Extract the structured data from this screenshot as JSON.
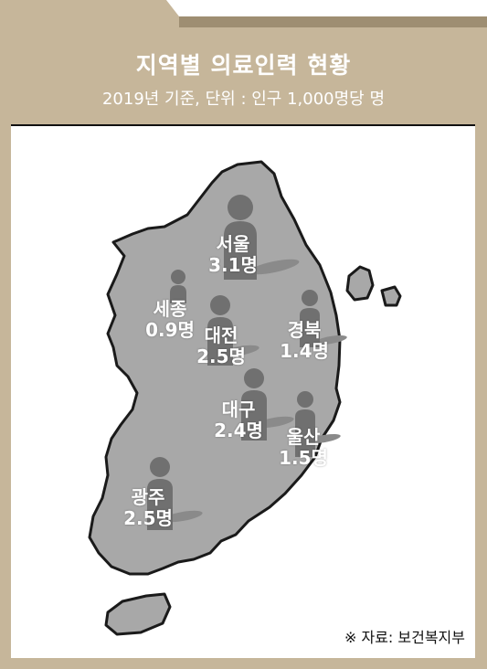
{
  "header": {
    "title": "지역별 의료인력 현황",
    "subtitle": "2019년 기준, 단위 : 인구 1,000명당 명"
  },
  "regions": [
    {
      "id": "seoul",
      "name": "서울",
      "value": "3.1명"
    },
    {
      "id": "sejong",
      "name": "세종",
      "value": "0.9명"
    },
    {
      "id": "daejeon",
      "name": "대전",
      "value": "2.5명"
    },
    {
      "id": "gyeongbuk",
      "name": "경북",
      "value": "1.4명"
    },
    {
      "id": "daegu",
      "name": "대구",
      "value": "2.4명"
    },
    {
      "id": "ulsan",
      "name": "울산",
      "value": "1.5명"
    },
    {
      "id": "gwangju",
      "name": "광주",
      "value": "2.5명"
    }
  ],
  "source": "※ 자료: 보건복지부",
  "colors": {
    "frame": "#c6b69a",
    "map_fill": "#a8a8a8",
    "map_stroke": "#1a1a1a",
    "person_icon": "#707070"
  }
}
